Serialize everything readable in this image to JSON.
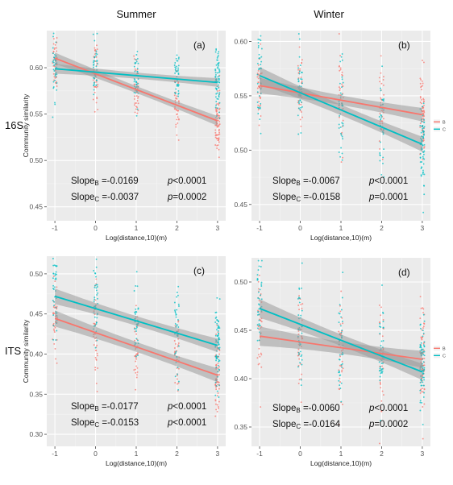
{
  "columns": [
    "Summer",
    "Winter"
  ],
  "rows": [
    "16S",
    "ITS"
  ],
  "colors": {
    "B": "#F8766D",
    "C": "#00BFC4",
    "panel_bg": "#EBEBEB",
    "ribbon": "#9A9A9A"
  },
  "chart_data": [
    {
      "type": "scatter",
      "panel_label": "(a)",
      "ylabel": "Community similarity",
      "xlabel": "Log(distance,10)(m)",
      "x_ticks": [
        -1,
        0,
        1,
        2,
        3
      ],
      "y_ticks": [
        0.45,
        0.5,
        0.55,
        0.6
      ],
      "xlim": [
        -1.2,
        3.2
      ],
      "ylim": [
        0.435,
        0.64
      ],
      "grid": true,
      "legend": [],
      "series": [
        {
          "name": "B",
          "fit": {
            "intercept": 0.5934,
            "slope": -0.0169
          },
          "spread": 0.017
        },
        {
          "name": "C",
          "fit": {
            "intercept": 0.5952,
            "slope": -0.0037
          },
          "spread": 0.015
        }
      ],
      "stats": [
        {
          "sub": "B",
          "text": "=-0.0169",
          "p": "<0.0001"
        },
        {
          "sub": "C",
          "text": "=-0.0037",
          "p": "=0.0002"
        }
      ]
    },
    {
      "type": "scatter",
      "panel_label": "(b)",
      "ylabel": "",
      "xlabel": "Log(distance,10)(m)",
      "x_ticks": [
        -1,
        0,
        1,
        2,
        3
      ],
      "y_ticks": [
        0.45,
        0.5,
        0.55,
        0.6
      ],
      "xlim": [
        -1.2,
        3.2
      ],
      "ylim": [
        0.435,
        0.61
      ],
      "grid": true,
      "legend": [
        "B",
        "C"
      ],
      "series": [
        {
          "name": "B",
          "fit": {
            "intercept": 0.5527,
            "slope": -0.0067
          },
          "spread": 0.02
        },
        {
          "name": "C",
          "fit": {
            "intercept": 0.5528,
            "slope": -0.0158
          },
          "spread": 0.022
        }
      ],
      "stats": [
        {
          "sub": "B",
          "text": "=-0.0067",
          "p": "<0.0001"
        },
        {
          "sub": "C",
          "text": "=-0.0158",
          "p": "=0.0001"
        }
      ]
    },
    {
      "type": "scatter",
      "panel_label": "(c)",
      "ylabel": "Community similarity",
      "xlabel": "Log(distance,10)(m)",
      "x_ticks": [
        -1,
        0,
        1,
        2,
        3
      ],
      "y_ticks": [
        0.3,
        0.35,
        0.4,
        0.45,
        0.5
      ],
      "xlim": [
        -1.2,
        3.2
      ],
      "ylim": [
        0.285,
        0.522
      ],
      "grid": true,
      "legend": [],
      "series": [
        {
          "name": "B",
          "fit": {
            "intercept": 0.4267,
            "slope": -0.0177
          },
          "spread": 0.028
        },
        {
          "name": "C",
          "fit": {
            "intercept": 0.4567,
            "slope": -0.0153
          },
          "spread": 0.027
        }
      ],
      "stats": [
        {
          "sub": "B",
          "text": "=-0.0177",
          "p": "<0.0001"
        },
        {
          "sub": "C",
          "text": "=-0.0153",
          "p": "<0.0001"
        }
      ]
    },
    {
      "type": "scatter",
      "panel_label": "(d)",
      "ylabel": "",
      "xlabel": "Log(distance,10)(m)",
      "x_ticks": [
        -1,
        0,
        1,
        2,
        3
      ],
      "y_ticks": [
        0.35,
        0.4,
        0.45,
        0.5
      ],
      "xlim": [
        -1.2,
        3.2
      ],
      "ylim": [
        0.33,
        0.525
      ],
      "grid": true,
      "legend": [
        "B",
        "C"
      ],
      "series": [
        {
          "name": "B",
          "fit": {
            "intercept": 0.438,
            "slope": -0.006
          },
          "spread": 0.028
        },
        {
          "name": "C",
          "fit": {
            "intercept": 0.4562,
            "slope": -0.0164
          },
          "spread": 0.027
        }
      ],
      "stats": [
        {
          "sub": "B",
          "text": "=-0.0060",
          "p": "<0.0001"
        },
        {
          "sub": "C",
          "text": "=-0.0164",
          "p": "=0.0002"
        }
      ]
    }
  ]
}
